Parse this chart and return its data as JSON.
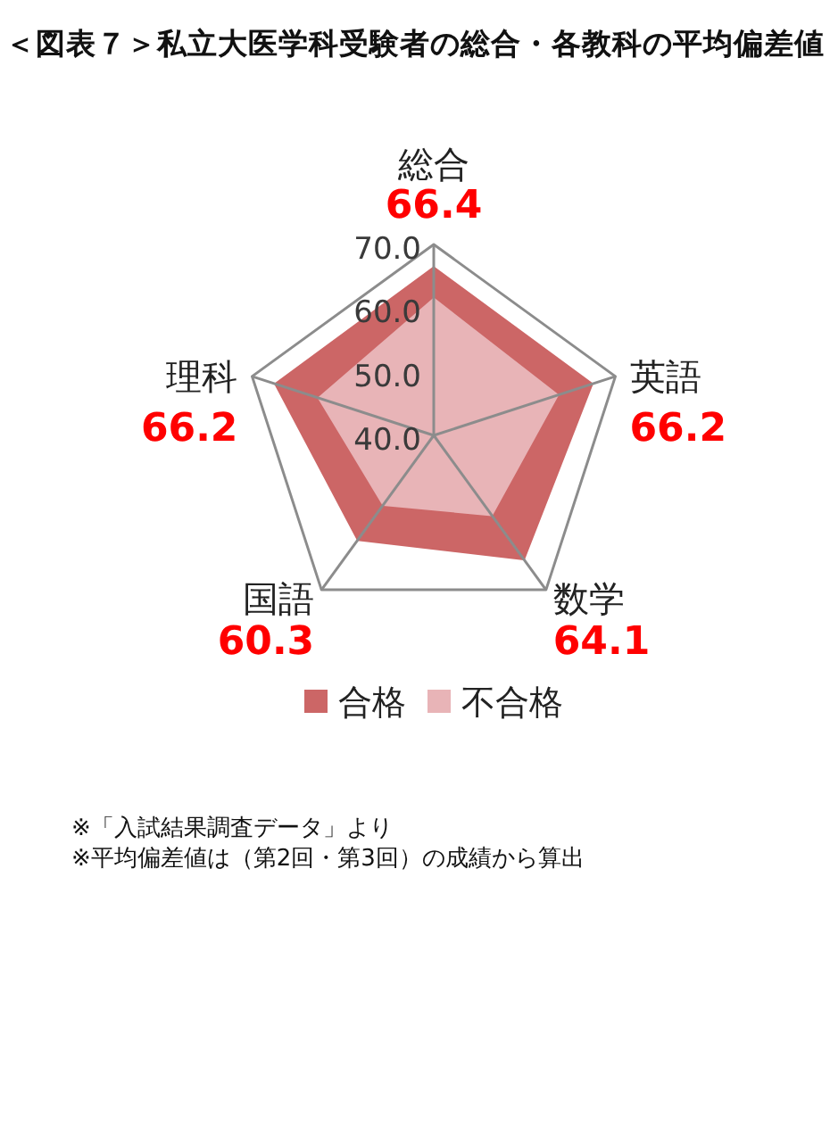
{
  "chart_data": {
    "type": "radar",
    "title": "＜図表７＞私立大医学科受験者の総合・各教科の平均偏差値",
    "categories": [
      "総合",
      "英語",
      "数学",
      "国語",
      "理科"
    ],
    "series": [
      {
        "name": "合格",
        "color": "#cc6666",
        "values": [
          66.4,
          66.2,
          64.1,
          60.3,
          66.2
        ],
        "value_labels": [
          "66.4",
          "66.2",
          "64.1",
          "60.3",
          "66.2"
        ]
      },
      {
        "name": "不合格",
        "color": "#e8b4b7",
        "values": [
          61.5,
          60.5,
          55.5,
          53.5,
          59.0
        ]
      }
    ],
    "ylim": [
      40,
      70
    ],
    "yticks": [
      {
        "value": 40,
        "label": "40.0"
      },
      {
        "value": 50,
        "label": "50.0"
      },
      {
        "value": 60,
        "label": "60.0"
      },
      {
        "value": 70,
        "label": "70.0"
      }
    ],
    "grid": "x",
    "legend": "bottom",
    "annotations": [
      "※「入試結果調査データ」より",
      "※平均偏差値は（第2回・第3回）の成績から算出"
    ]
  }
}
